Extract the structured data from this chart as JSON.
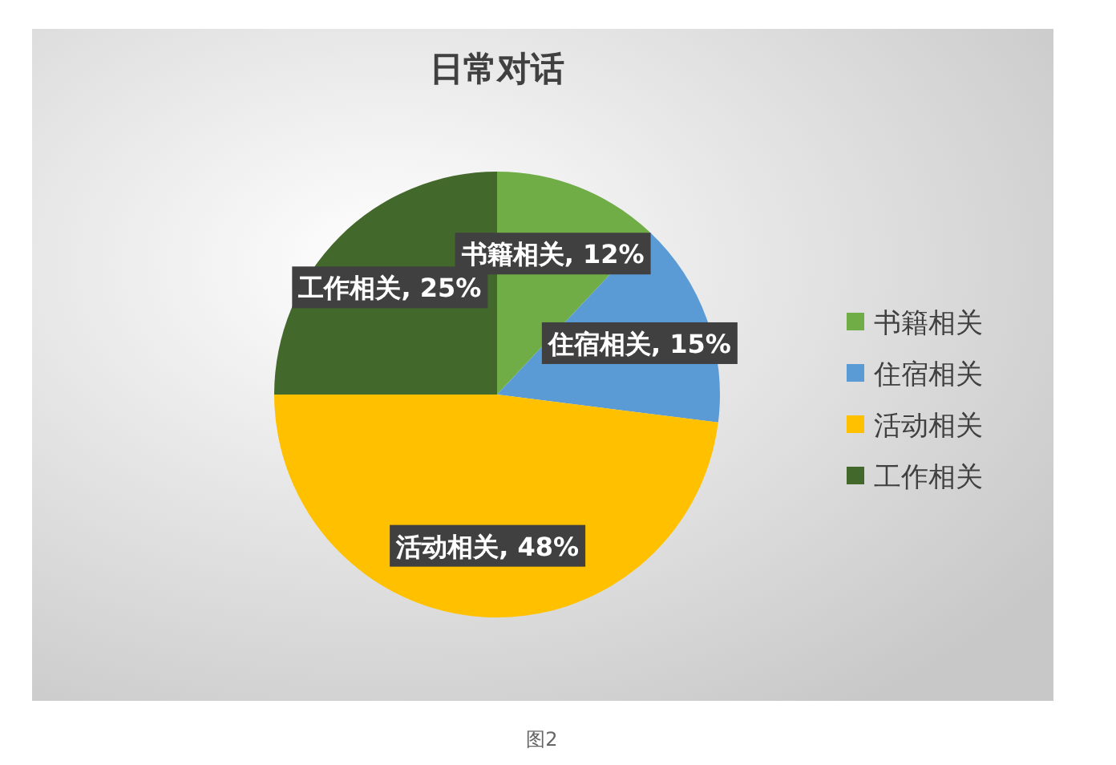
{
  "chart_data": {
    "type": "pie",
    "title": "日常对话",
    "categories": [
      "书籍相关",
      "住宿相关",
      "活动相关",
      "工作相关"
    ],
    "values": [
      12,
      15,
      48,
      25
    ],
    "colors": [
      "#70ad47",
      "#5b9bd5",
      "#ffc000",
      "#43682b"
    ],
    "value_labels": [
      "书籍相关, 12%",
      "住宿相关, 15%",
      "活动相关, 48%",
      "工作相关, 25%"
    ],
    "legend": "right",
    "annotations": [
      "图2"
    ]
  }
}
